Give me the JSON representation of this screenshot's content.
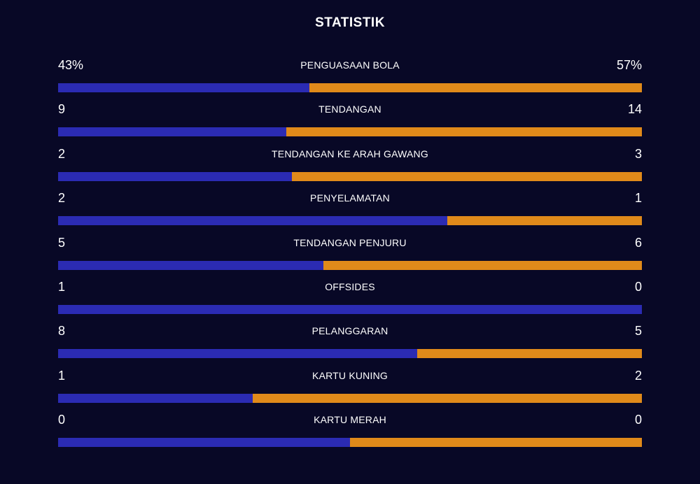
{
  "title": "STATISTIK",
  "colors": {
    "background": "#080826",
    "home": "#2b2bb3",
    "away": "#e08a1a",
    "text": "#ffffff"
  },
  "stats": [
    {
      "label": "PENGUASAAN BOLA",
      "home": "43%",
      "away": "57%",
      "home_value": 43,
      "away_value": 57
    },
    {
      "label": "TENDANGAN",
      "home": "9",
      "away": "14",
      "home_value": 9,
      "away_value": 14
    },
    {
      "label": "TENDANGAN KE ARAH GAWANG",
      "home": "2",
      "away": "3",
      "home_value": 2,
      "away_value": 3
    },
    {
      "label": "PENYELAMATAN",
      "home": "2",
      "away": "1",
      "home_value": 2,
      "away_value": 1
    },
    {
      "label": "TENDANGAN PENJURU",
      "home": "5",
      "away": "6",
      "home_value": 5,
      "away_value": 6
    },
    {
      "label": "OFFSIDES",
      "home": "1",
      "away": "0",
      "home_value": 1,
      "away_value": 0
    },
    {
      "label": "PELANGGARAN",
      "home": "8",
      "away": "5",
      "home_value": 8,
      "away_value": 5
    },
    {
      "label": "KARTU KUNING",
      "home": "1",
      "away": "2",
      "home_value": 1,
      "away_value": 2
    },
    {
      "label": "KARTU MERAH",
      "home": "0",
      "away": "0",
      "home_value": 0,
      "away_value": 0
    }
  ]
}
